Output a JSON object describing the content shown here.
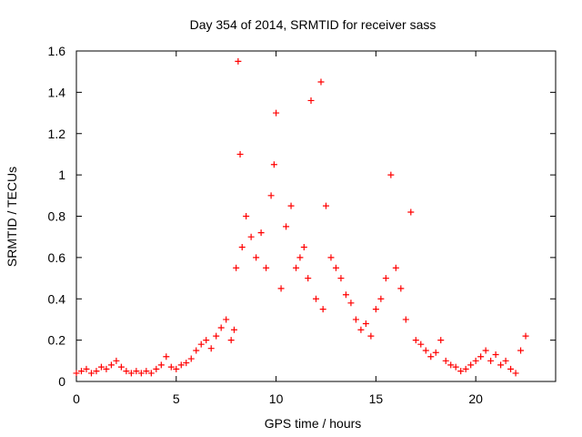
{
  "chart_data": {
    "type": "scatter",
    "title": "Day 354 of 2014, SRMTID for receiver sass",
    "xlabel": "GPS time / hours",
    "ylabel": "SRMTID / TECUs",
    "xlim": [
      0,
      24
    ],
    "ylim": [
      0,
      1.6
    ],
    "grid": false,
    "legend": "none",
    "marker": "+",
    "x_ticks": [
      0,
      5,
      10,
      15,
      20
    ],
    "x_tick_labels": [
      "0",
      "5",
      "10",
      "15",
      "20"
    ],
    "y_ticks": [
      0,
      0.2,
      0.4,
      0.6,
      0.8,
      1.0,
      1.2,
      1.4,
      1.6
    ],
    "y_tick_labels": [
      "0",
      "0.2",
      "0.4",
      "0.6",
      "0.8",
      "1",
      "1.2",
      "1.4",
      "1.6"
    ],
    "colors": {
      "series": "#ff0000",
      "axes": "#000000",
      "background": "#ffffff"
    },
    "series": [
      {
        "name": "SRMTID",
        "x": [
          0.0,
          0.25,
          0.5,
          0.75,
          1.0,
          1.25,
          1.5,
          1.75,
          2.0,
          2.25,
          2.5,
          2.75,
          3.0,
          3.25,
          3.5,
          3.75,
          4.0,
          4.25,
          4.5,
          4.75,
          5.0,
          5.25,
          5.5,
          5.75,
          6.0,
          6.25,
          6.5,
          6.75,
          7.0,
          7.25,
          7.5,
          7.75,
          7.9,
          8.0,
          8.1,
          8.2,
          8.3,
          8.5,
          8.75,
          9.0,
          9.25,
          9.5,
          9.75,
          9.9,
          10.0,
          10.25,
          10.5,
          10.75,
          11.0,
          11.2,
          11.4,
          11.6,
          11.75,
          12.0,
          12.25,
          12.35,
          12.5,
          12.75,
          13.0,
          13.25,
          13.5,
          13.75,
          14.0,
          14.25,
          14.5,
          14.75,
          15.0,
          15.25,
          15.5,
          15.75,
          16.0,
          16.25,
          16.5,
          16.75,
          17.0,
          17.25,
          17.5,
          17.75,
          18.0,
          18.25,
          18.5,
          18.75,
          19.0,
          19.25,
          19.5,
          19.75,
          20.0,
          20.25,
          20.5,
          20.75,
          21.0,
          21.25,
          21.5,
          21.75,
          22.0,
          22.25,
          22.5
        ],
        "y": [
          0.04,
          0.05,
          0.06,
          0.04,
          0.05,
          0.07,
          0.06,
          0.08,
          0.1,
          0.07,
          0.05,
          0.04,
          0.05,
          0.04,
          0.05,
          0.04,
          0.06,
          0.08,
          0.12,
          0.07,
          0.06,
          0.08,
          0.09,
          0.11,
          0.15,
          0.18,
          0.2,
          0.16,
          0.22,
          0.26,
          0.3,
          0.2,
          0.25,
          0.55,
          1.55,
          1.1,
          0.65,
          0.8,
          0.7,
          0.6,
          0.72,
          0.55,
          0.9,
          1.05,
          1.3,
          0.45,
          0.75,
          0.85,
          0.55,
          0.6,
          0.65,
          0.5,
          1.36,
          0.4,
          1.45,
          0.35,
          0.85,
          0.6,
          0.55,
          0.5,
          0.42,
          0.38,
          0.3,
          0.25,
          0.28,
          0.22,
          0.35,
          0.4,
          0.5,
          1.0,
          0.55,
          0.45,
          0.3,
          0.82,
          0.2,
          0.18,
          0.15,
          0.12,
          0.14,
          0.2,
          0.1,
          0.08,
          0.07,
          0.05,
          0.06,
          0.08,
          0.1,
          0.12,
          0.15,
          0.1,
          0.13,
          0.08,
          0.1,
          0.06,
          0.04,
          0.15,
          0.22
        ]
      }
    ]
  }
}
